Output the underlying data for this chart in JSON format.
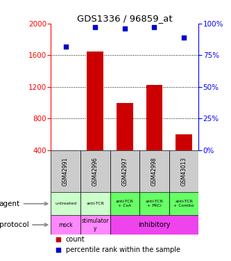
{
  "title": "GDS1336 / 96859_at",
  "samples": [
    "GSM42991",
    "GSM42996",
    "GSM42997",
    "GSM42998",
    "GSM43013"
  ],
  "counts": [
    400,
    1650,
    1000,
    1220,
    600
  ],
  "percentile_ranks": [
    82,
    97,
    96,
    97,
    89
  ],
  "ylim_left": [
    400,
    2000
  ],
  "ylim_right": [
    0,
    100
  ],
  "yticks_left": [
    400,
    800,
    1200,
    1600,
    2000
  ],
  "yticks_right": [
    0,
    25,
    50,
    75,
    100
  ],
  "bar_color": "#cc0000",
  "dot_color": "#0000cc",
  "agent_labels": [
    "untreated",
    "anti-TCR",
    "anti-TCR\n+ CsA",
    "anti-TCR\n+ PKCi",
    "anti-TCR\n+ Combo"
  ],
  "agent_colors": [
    "#ccffcc",
    "#ccffcc",
    "#66ff66",
    "#66ff66",
    "#66ff66"
  ],
  "proto_spans": [
    {
      "label": "mock",
      "start": 0,
      "end": 1,
      "color": "#ff88ff"
    },
    {
      "label": "stimulator\ny",
      "start": 1,
      "end": 2,
      "color": "#ff88ff"
    },
    {
      "label": "inhibitory",
      "start": 2,
      "end": 5,
      "color": "#ee44ee"
    }
  ],
  "sample_bg": "#cccccc",
  "background_color": "#ffffff"
}
